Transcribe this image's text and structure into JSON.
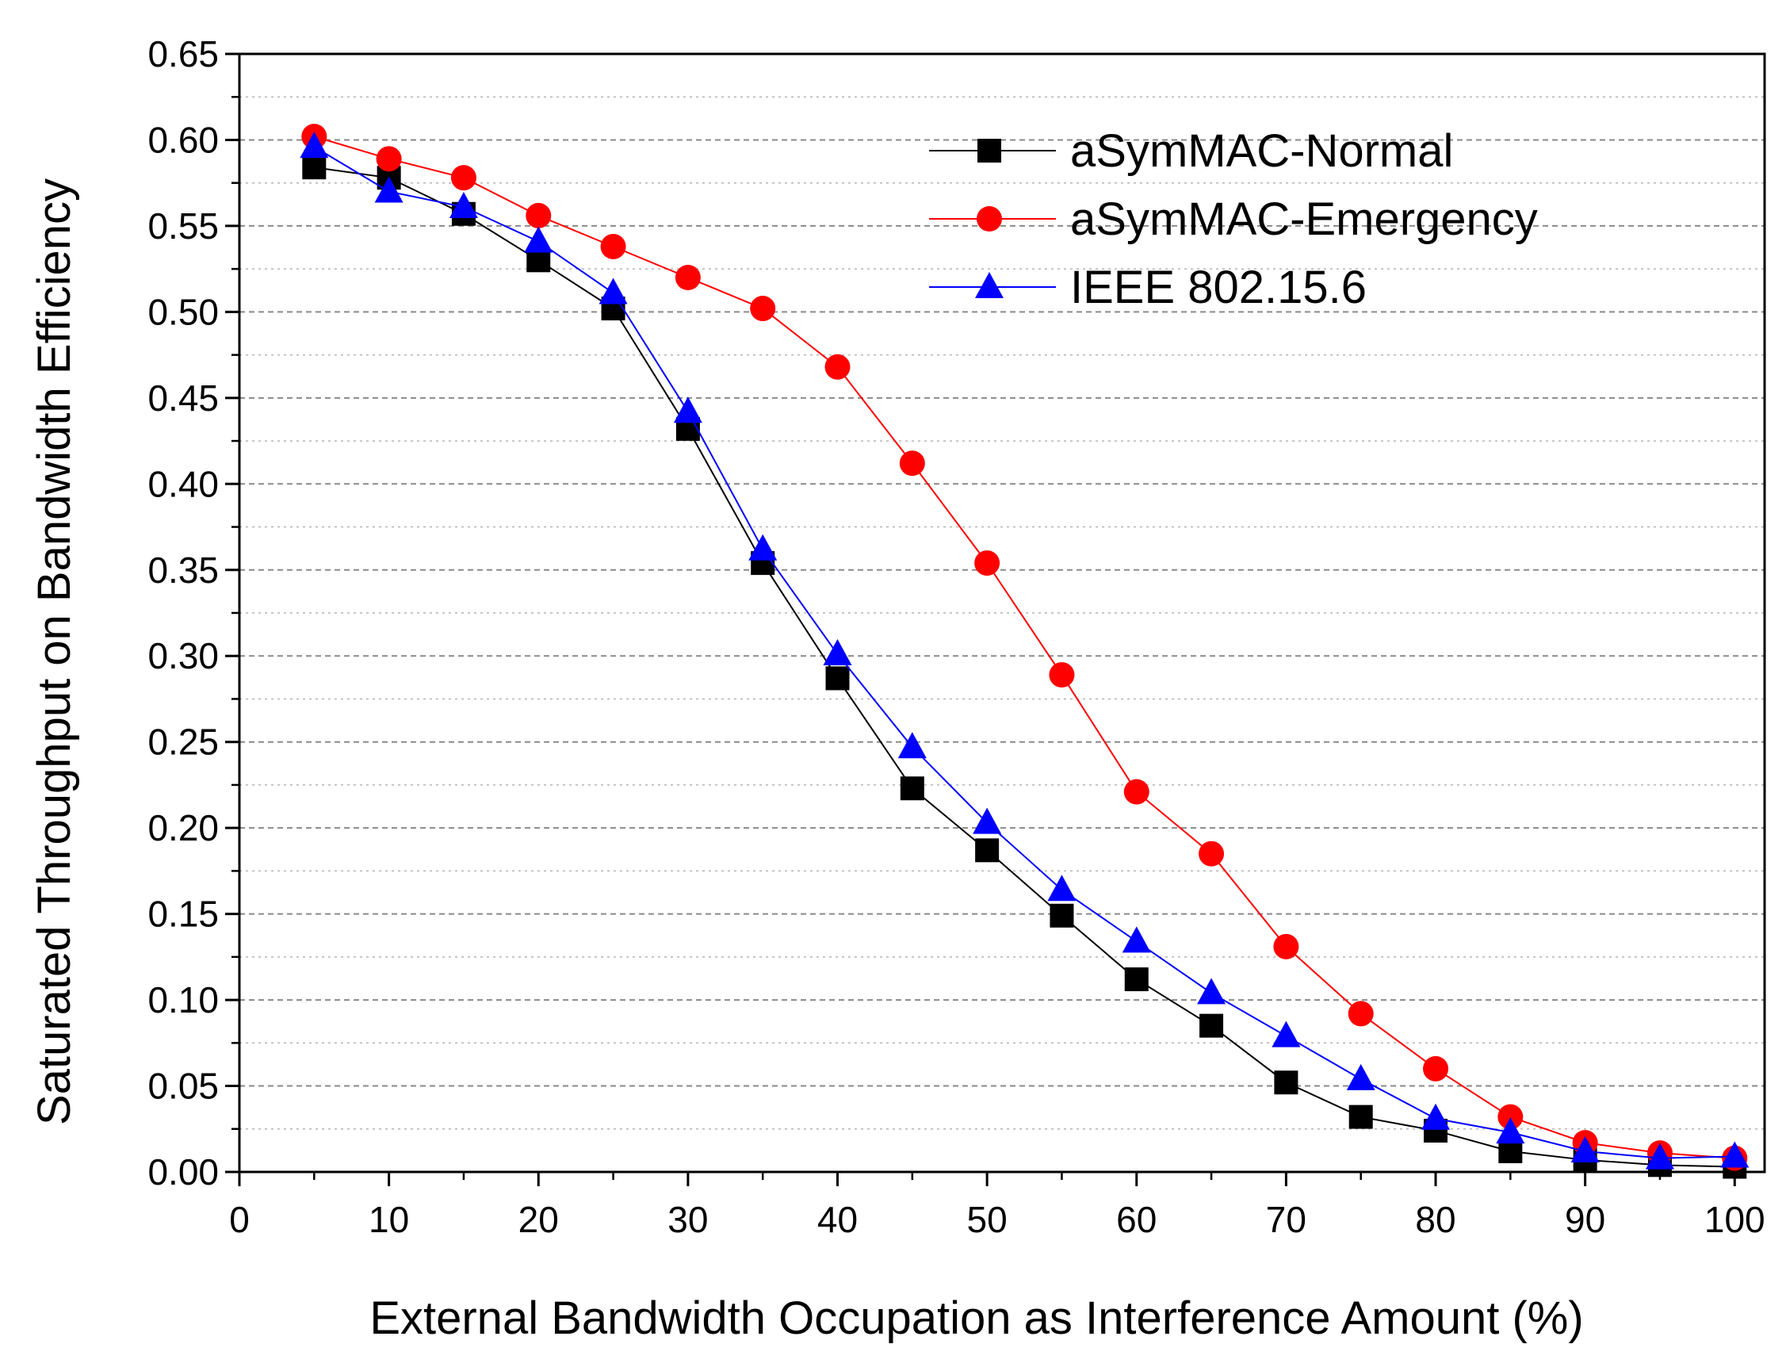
{
  "chart_data": {
    "type": "line",
    "xlabel": "External Bandwidth Occupation as Interference Amount (%)",
    "ylabel": "Saturated Throughput on Bandwidth Efficiency",
    "xlim": [
      0,
      102
    ],
    "ylim": [
      0,
      0.65
    ],
    "xticks": [
      0,
      10,
      20,
      30,
      40,
      50,
      60,
      70,
      80,
      90,
      100
    ],
    "xtick_labels": [
      "0",
      "10",
      "20",
      "30",
      "40",
      "50",
      "60",
      "70",
      "80",
      "90",
      "100"
    ],
    "yticks": [
      0,
      0.05,
      0.1,
      0.15,
      0.2,
      0.25,
      0.3,
      0.35,
      0.4,
      0.45,
      0.5,
      0.55,
      0.6,
      0.65
    ],
    "ytick_labels": [
      "0.00",
      "0.05",
      "0.10",
      "0.15",
      "0.20",
      "0.25",
      "0.30",
      "0.35",
      "0.40",
      "0.45",
      "0.50",
      "0.55",
      "0.60",
      "0.65"
    ],
    "grid": true,
    "legend_position": "top-right",
    "x": [
      5,
      10,
      15,
      20,
      25,
      30,
      35,
      40,
      45,
      50,
      55,
      60,
      65,
      70,
      75,
      80,
      85,
      90,
      95,
      100
    ],
    "series": [
      {
        "name": "aSymMAC-Normal",
        "color": "#000000",
        "marker": "square",
        "values": [
          0.584,
          0.578,
          0.557,
          0.53,
          0.502,
          0.432,
          0.354,
          0.287,
          0.223,
          0.187,
          0.149,
          0.112,
          0.085,
          0.052,
          0.032,
          0.024,
          0.012,
          0.007,
          0.004,
          0.003
        ]
      },
      {
        "name": "aSymMAC-Emergency",
        "color": "#ff0000",
        "marker": "circle",
        "values": [
          0.602,
          0.589,
          0.578,
          0.556,
          0.538,
          0.52,
          0.502,
          0.468,
          0.412,
          0.354,
          0.289,
          0.221,
          0.185,
          0.131,
          0.092,
          0.06,
          0.032,
          0.017,
          0.011,
          0.008
        ]
      },
      {
        "name": "IEEE 802.15.6",
        "color": "#0000ff",
        "marker": "triangle",
        "values": [
          0.596,
          0.57,
          0.561,
          0.541,
          0.511,
          0.442,
          0.362,
          0.301,
          0.247,
          0.203,
          0.164,
          0.134,
          0.104,
          0.079,
          0.054,
          0.031,
          0.023,
          0.012,
          0.008,
          0.009
        ]
      }
    ]
  }
}
